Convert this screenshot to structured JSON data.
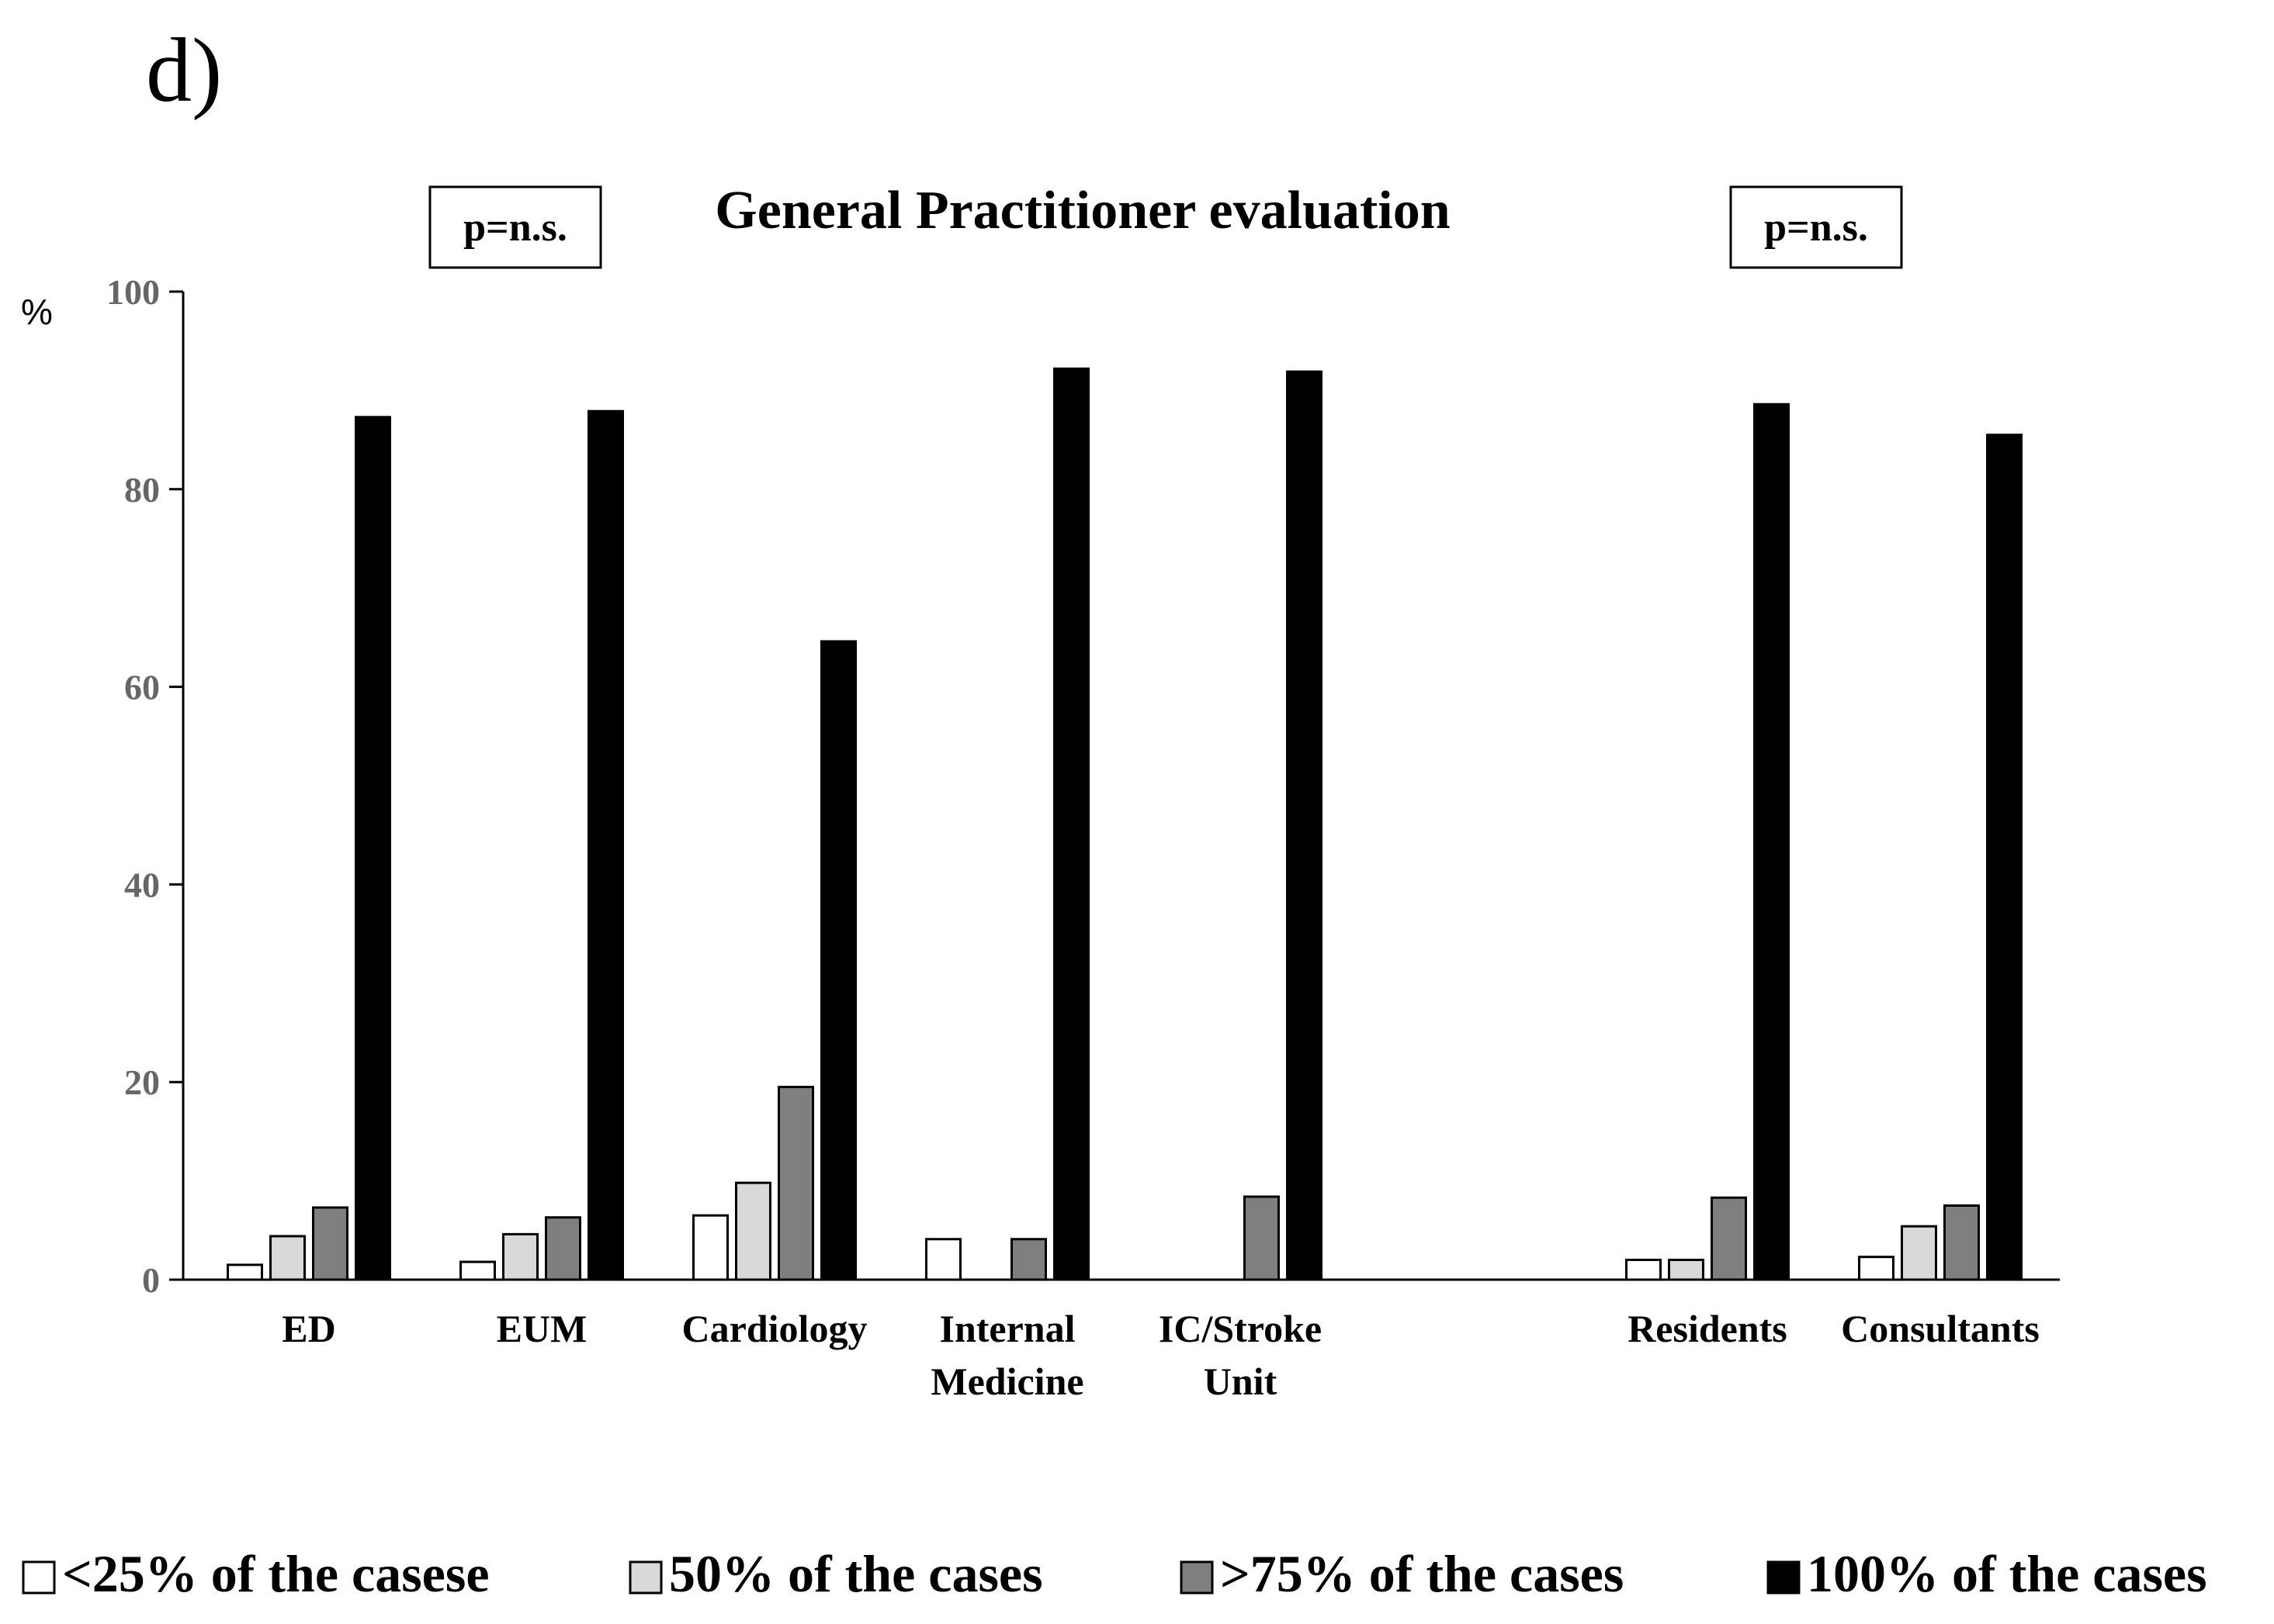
{
  "panel_label": "d)",
  "chart_data": {
    "type": "bar",
    "title": "General Practitioner evaluation",
    "ylabel": "%",
    "xlabel": "",
    "ylim": [
      0,
      100
    ],
    "yticks": [
      "0",
      "20",
      "40",
      "60",
      "80",
      "100"
    ],
    "grid": false,
    "legend_position": "bottom",
    "annotations": [
      {
        "text": "p=n.s.",
        "position": "above-left-group"
      },
      {
        "text": "p=n.s.",
        "position": "above-right-group"
      }
    ],
    "categories": [
      [
        "ED"
      ],
      [
        "EUM"
      ],
      [
        "Cardiology"
      ],
      [
        "Internal",
        "Medicine"
      ],
      [
        "IC/Stroke",
        "Unit"
      ],
      [
        "Residents"
      ],
      [
        "Consultants"
      ]
    ],
    "series": [
      {
        "name": "<25% of the casese",
        "color": "#ffffff",
        "values": [
          1.5,
          1.8,
          6.5,
          4.1,
          0,
          2.0,
          2.3
        ]
      },
      {
        "name": "50% of the cases",
        "color": "#d9d9d9",
        "values": [
          4.4,
          4.6,
          9.8,
          0,
          0,
          2.0,
          5.4
        ]
      },
      {
        "name": ">75% of the cases",
        "color": "#7f7f7f",
        "values": [
          7.3,
          6.3,
          19.5,
          4.1,
          8.4,
          8.3,
          7.5
        ]
      },
      {
        "name": "100% of the cases",
        "color": "#000000",
        "values": [
          87.3,
          87.9,
          64.6,
          92.2,
          91.9,
          88.6,
          85.5
        ]
      }
    ]
  }
}
